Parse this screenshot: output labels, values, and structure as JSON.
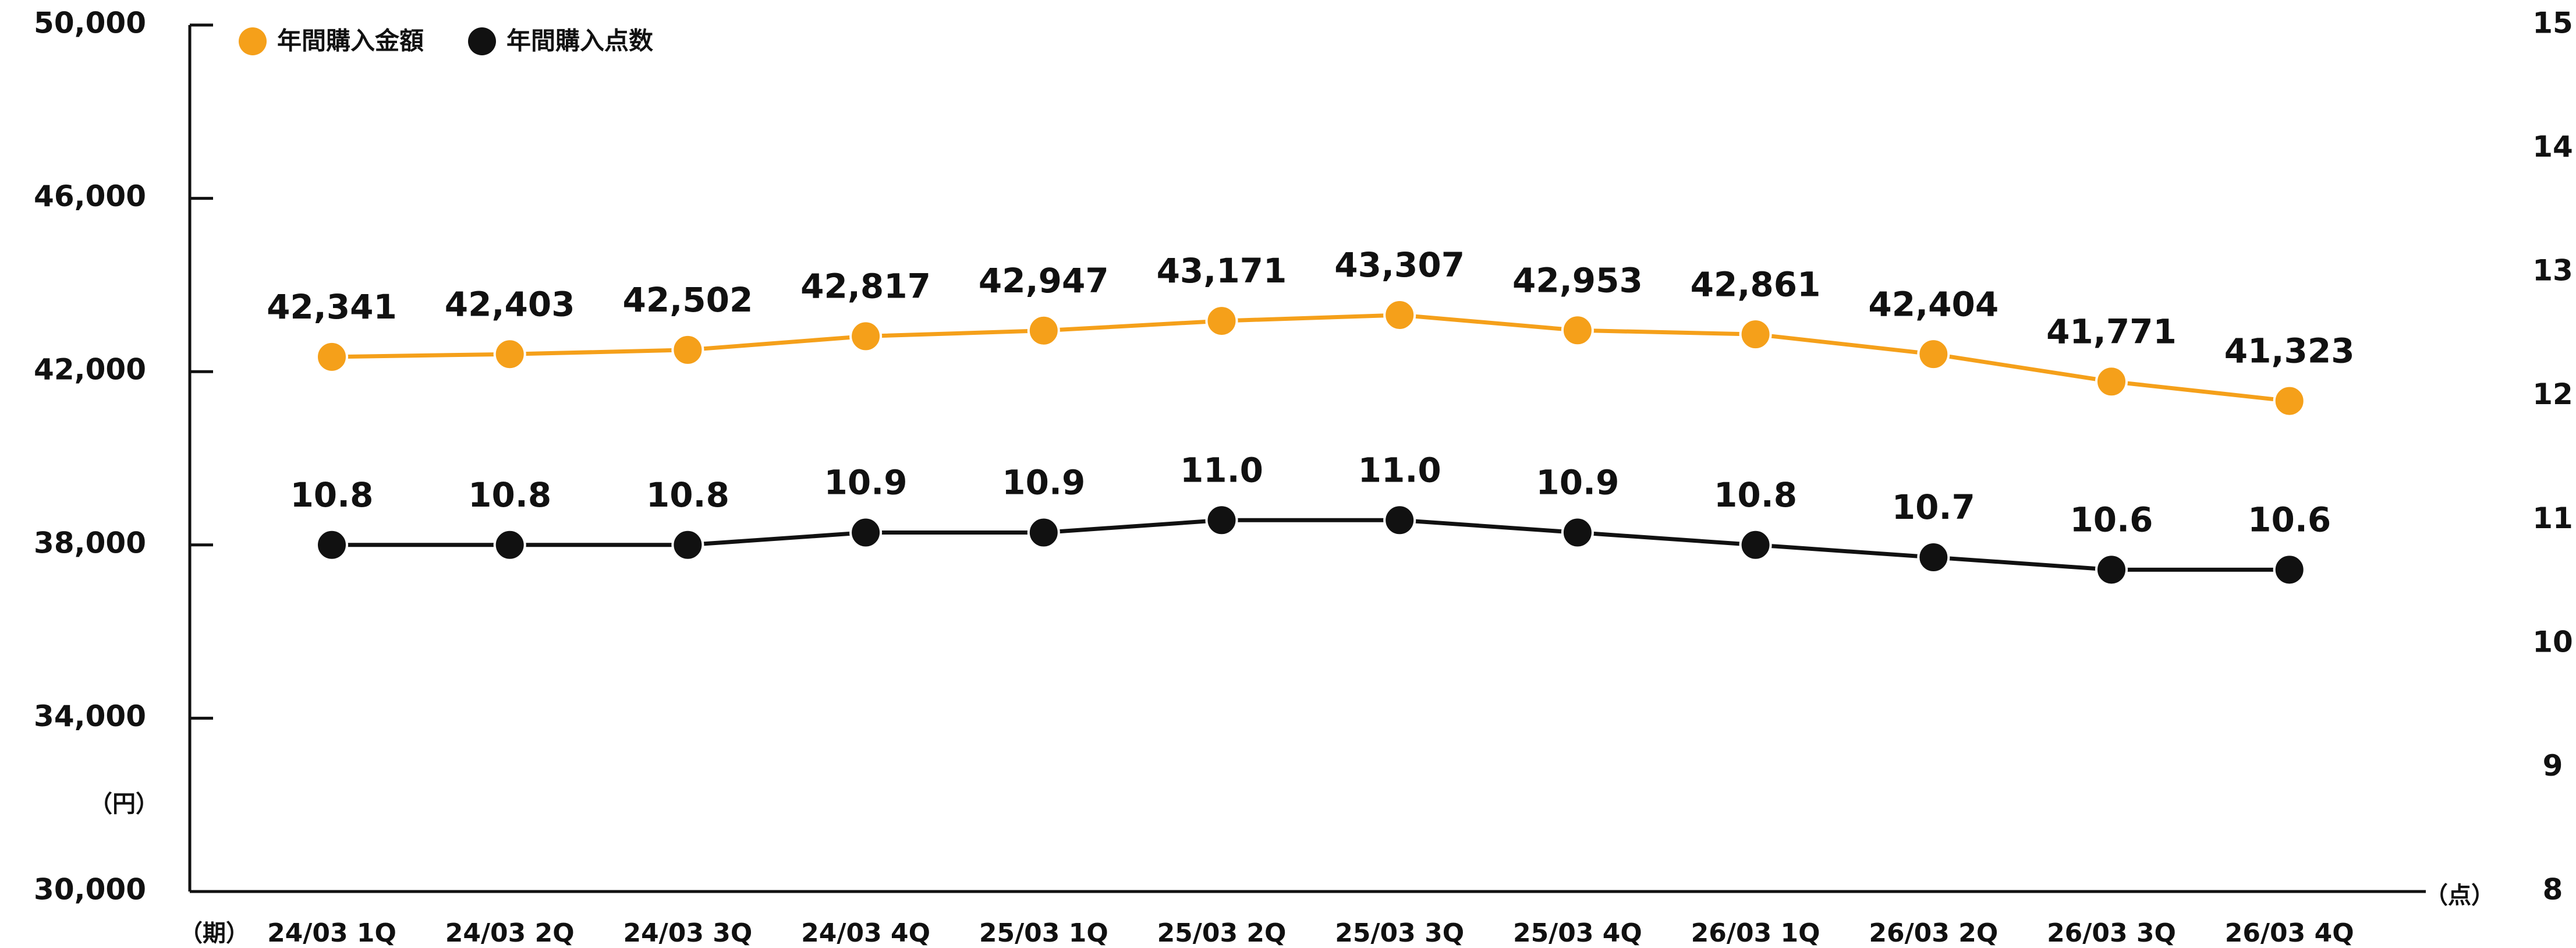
{
  "chart_data": {
    "type": "line",
    "categories": [
      "24/03 1Q",
      "24/03 2Q",
      "24/03 3Q",
      "24/03 4Q",
      "25/03 1Q",
      "25/03 2Q",
      "25/03 3Q",
      "25/03 4Q",
      "26/03 1Q",
      "26/03 2Q",
      "26/03 3Q",
      "26/03 4Q"
    ],
    "series": [
      {
        "name": "年間購入金額",
        "color": "#f5a01a",
        "axis": "y",
        "values": [
          42341,
          42403,
          42502,
          42817,
          42947,
          43171,
          43307,
          42953,
          42861,
          42404,
          41771,
          41323
        ],
        "value_labels": [
          "42,341",
          "42,403",
          "42,502",
          "42,817",
          "42,947",
          "43,171",
          "43,307",
          "42,953",
          "42,861",
          "42,404",
          "41,771",
          "41,323"
        ]
      },
      {
        "name": "年間購入点数",
        "color": "#111111",
        "axis": "y2",
        "values": [
          10.8,
          10.8,
          10.8,
          10.9,
          10.9,
          11.0,
          11.0,
          10.9,
          10.8,
          10.7,
          10.6,
          10.6
        ],
        "value_labels": [
          "10.8",
          "10.8",
          "10.8",
          "10.9",
          "10.9",
          "11.0",
          "11.0",
          "10.9",
          "10.8",
          "10.7",
          "10.6",
          "10.6"
        ]
      }
    ],
    "ylim": [
      30000,
      50000
    ],
    "yticks": [
      {
        "value": 30000,
        "label": "30,000"
      },
      {
        "value": 34000,
        "label": "34,000"
      },
      {
        "value": 38000,
        "label": "38,000"
      },
      {
        "value": 42000,
        "label": "42,000"
      },
      {
        "value": 46000,
        "label": "46,000"
      },
      {
        "value": 50000,
        "label": "50,000"
      }
    ],
    "y2lim": [
      8,
      15
    ],
    "y2ticks": [
      8,
      9,
      10,
      11,
      12,
      13,
      14,
      15
    ],
    "y_unit": "（円）",
    "x_unit": "（期）",
    "y2_unit": "（点）",
    "legend": "top-left"
  }
}
